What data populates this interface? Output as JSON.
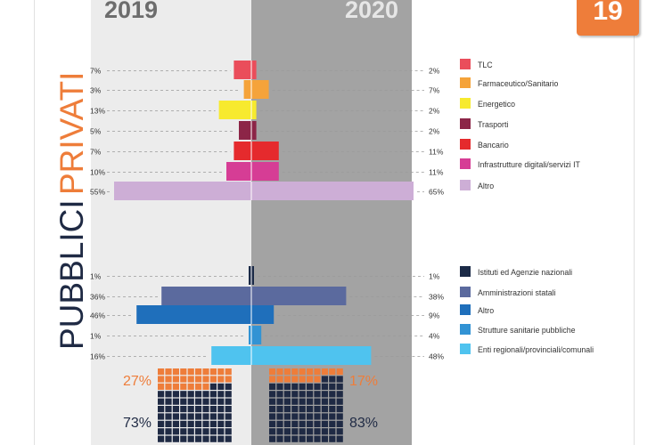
{
  "header": {
    "year_left": "2019",
    "year_right": "2020",
    "page_number": "19"
  },
  "sections": {
    "privati_title": "PRIVATI",
    "pubblici_title": "PUBBLICI"
  },
  "colors": {
    "accent": "#ee7d3a",
    "dark_navy": "#1f2a44",
    "left_bg": "#ececec",
    "right_bg": "#a3a3a3"
  },
  "chart_data": [
    {
      "type": "bar",
      "group": "PRIVATI",
      "categories": [
        "TLC",
        "Farmaceutico/Sanitario",
        "Energetico",
        "Trasporti",
        "Bancario",
        "Infrastrutture digitali/servizi IT",
        "Altro"
      ],
      "colors": [
        "#ea4d5b",
        "#f5a33a",
        "#f7ea2e",
        "#8c2547",
        "#e52a2d",
        "#d63d95",
        "#cdaed6"
      ],
      "series": [
        {
          "name": "2019",
          "values": [
            7,
            3,
            13,
            5,
            7,
            10,
            55
          ],
          "labels": [
            "7%",
            "3%",
            "13%",
            "5%",
            "7%",
            "10%",
            "55%"
          ]
        },
        {
          "name": "2020",
          "values": [
            2,
            7,
            2,
            2,
            11,
            11,
            65
          ],
          "labels": [
            "2%",
            "7%",
            "2%",
            "2%",
            "11%",
            "11%",
            "65%"
          ]
        }
      ]
    },
    {
      "type": "bar",
      "group": "PUBBLICI",
      "categories": [
        "Istituti ed Agenzie nazionali",
        "Amministrazioni statali",
        "Altro",
        "Strutture sanitarie pubbliche",
        "Enti regionali/provinciali/comunali"
      ],
      "colors": [
        "#1b2a47",
        "#5b6a9e",
        "#1f6fbb",
        "#3293d4",
        "#4fc3ef"
      ],
      "series": [
        {
          "name": "2019",
          "values": [
            1,
            36,
            46,
            1,
            16
          ],
          "labels": [
            "1%",
            "36%",
            "46%",
            "1%",
            "16%"
          ]
        },
        {
          "name": "2020",
          "values": [
            1,
            38,
            9,
            4,
            48
          ],
          "labels": [
            "1%",
            "38%",
            "9%",
            "4%",
            "48%"
          ]
        }
      ]
    },
    {
      "type": "waffle",
      "series": [
        {
          "name": "2019",
          "privati": 27,
          "pubblici": 73,
          "privati_label": "27%",
          "pubblici_label": "73%"
        },
        {
          "name": "2020",
          "privati": 17,
          "pubblici": 83,
          "privati_label": "17%",
          "pubblici_label": "83%"
        }
      ]
    }
  ]
}
